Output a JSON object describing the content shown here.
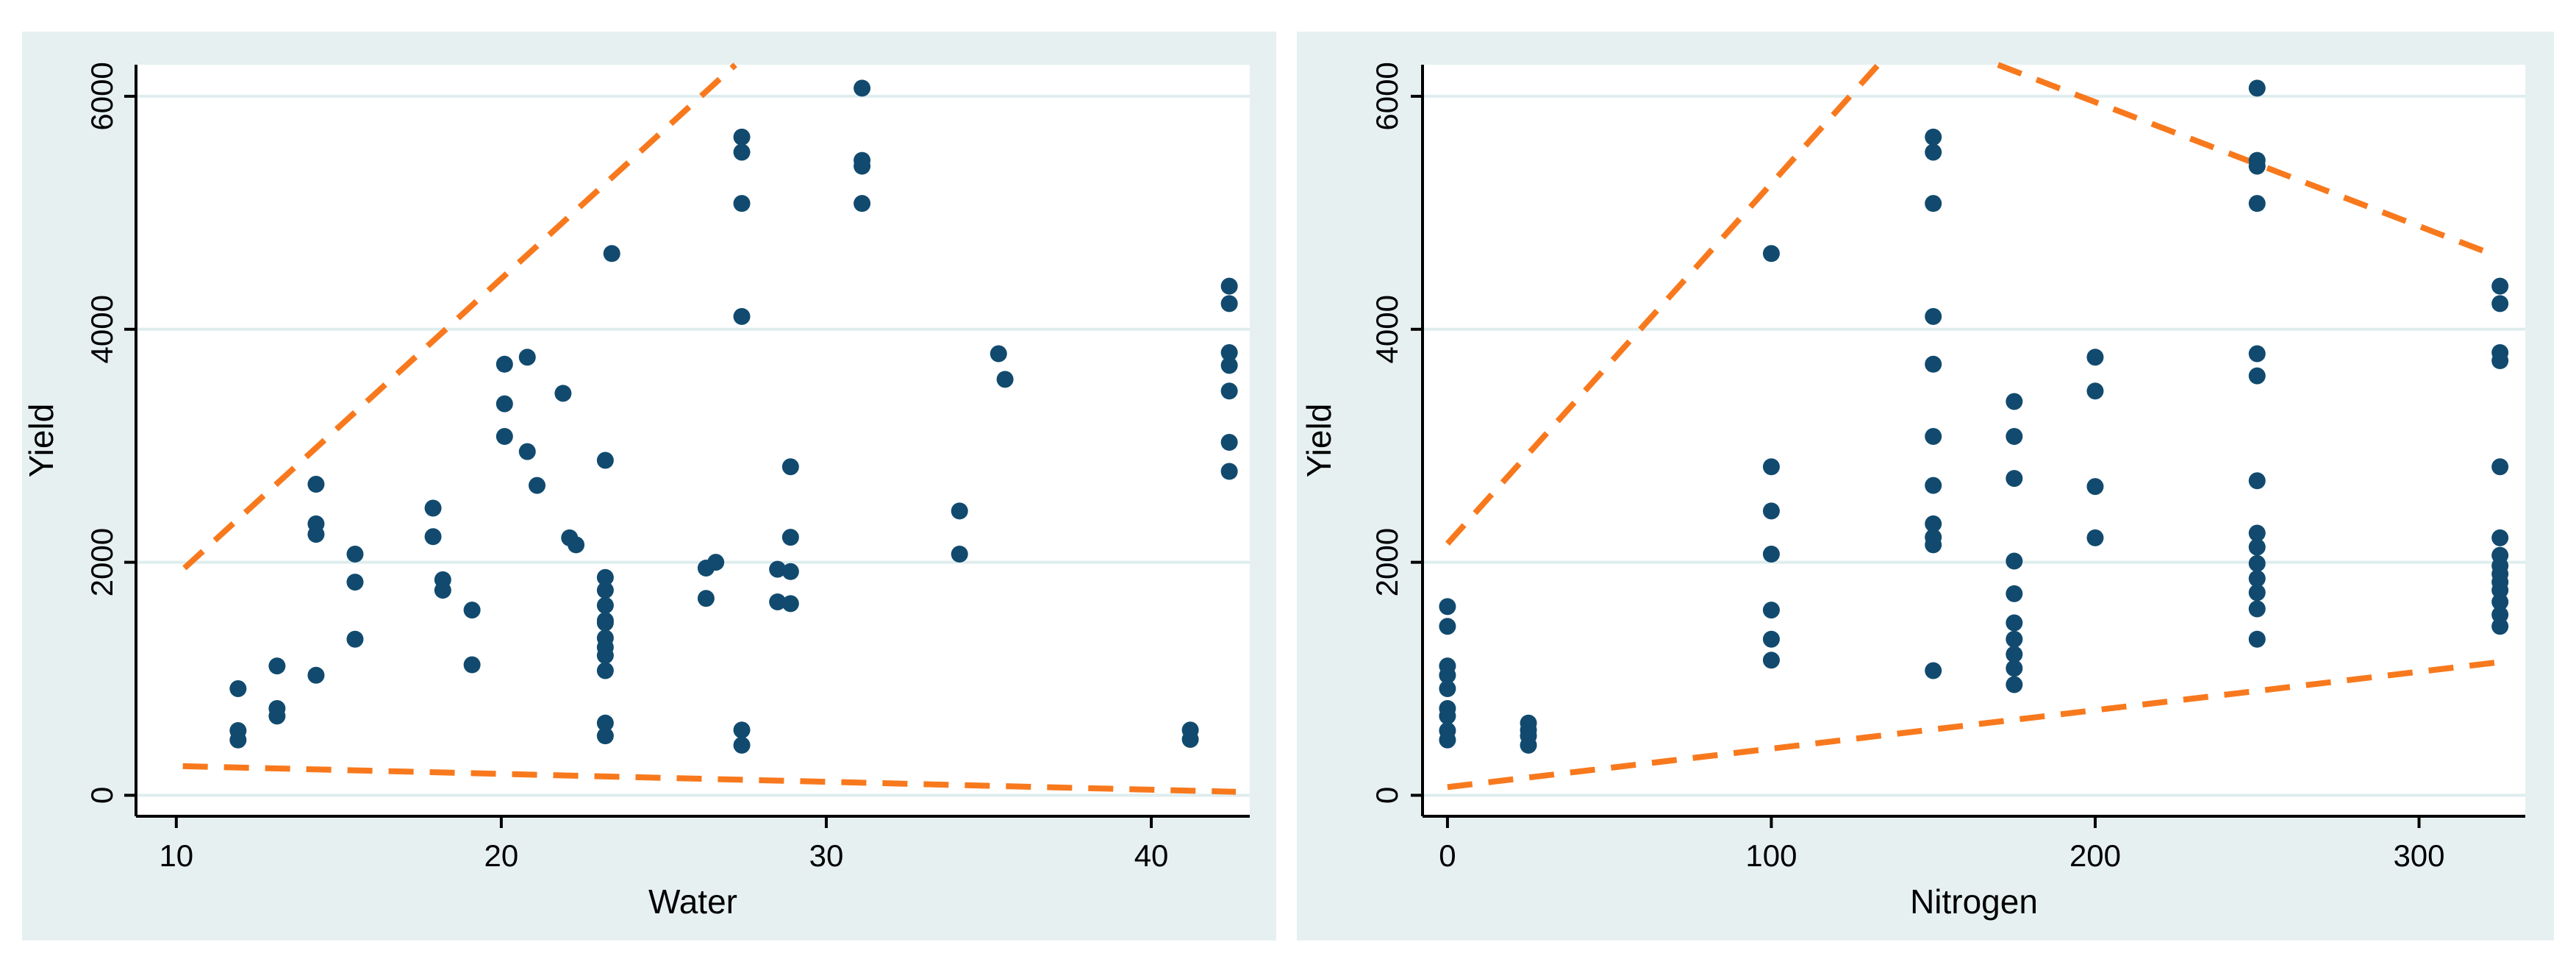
{
  "colors": {
    "outer_background": "#ffffff",
    "figure_background": "#e6f0f1",
    "plot_background": "#ffffff",
    "gridline": "#dfedee",
    "marker": "#114a6e",
    "dashed_line": "#f8791d",
    "axis": "#000000"
  },
  "chart_data": [
    {
      "type": "scatter",
      "title": "",
      "xlabel": "Water",
      "ylabel": "Yield",
      "xlim": [
        8.76,
        43.03
      ],
      "ylim": [
        -180,
        6271
      ],
      "xticks": [
        10,
        20,
        30,
        40
      ],
      "yticks": [
        0,
        2000,
        4000,
        6000
      ],
      "grid": true,
      "legend_position": "none",
      "points": [
        [
          11.9,
          915
        ],
        [
          11.9,
          555
        ],
        [
          11.9,
          475
        ],
        [
          13.1,
          1110
        ],
        [
          13.1,
          745
        ],
        [
          13.1,
          680
        ],
        [
          14.3,
          2670
        ],
        [
          14.3,
          2330
        ],
        [
          14.3,
          2240
        ],
        [
          14.3,
          1030
        ],
        [
          15.5,
          2070
        ],
        [
          15.5,
          1830
        ],
        [
          15.5,
          1340
        ],
        [
          17.9,
          2465
        ],
        [
          17.9,
          2220
        ],
        [
          18.2,
          1850
        ],
        [
          18.2,
          1760
        ],
        [
          19.1,
          1590
        ],
        [
          19.1,
          1120
        ],
        [
          20.1,
          3700
        ],
        [
          20.1,
          3360
        ],
        [
          20.1,
          3080
        ],
        [
          20.8,
          3760
        ],
        [
          20.8,
          2950
        ],
        [
          21.1,
          2660
        ],
        [
          21.9,
          3450
        ],
        [
          22.1,
          2210
        ],
        [
          22.3,
          2150
        ],
        [
          23.2,
          2875
        ],
        [
          23.2,
          1870
        ],
        [
          23.2,
          1760
        ],
        [
          23.2,
          1630
        ],
        [
          23.2,
          1500
        ],
        [
          23.2,
          1480
        ],
        [
          23.2,
          1350
        ],
        [
          23.2,
          1270
        ],
        [
          23.2,
          1200
        ],
        [
          23.2,
          1070
        ],
        [
          23.2,
          620
        ],
        [
          23.2,
          510
        ],
        [
          23.4,
          4650
        ],
        [
          26.3,
          1950
        ],
        [
          26.3,
          1690
        ],
        [
          26.6,
          2000
        ],
        [
          27.4,
          5650
        ],
        [
          27.4,
          5520
        ],
        [
          27.4,
          5080
        ],
        [
          27.4,
          4110
        ],
        [
          27.4,
          560
        ],
        [
          27.4,
          430
        ],
        [
          28.5,
          1940
        ],
        [
          28.5,
          1660
        ],
        [
          28.9,
          2820
        ],
        [
          28.9,
          2215
        ],
        [
          28.9,
          1920
        ],
        [
          28.9,
          1645
        ],
        [
          31.1,
          6070
        ],
        [
          31.1,
          5450
        ],
        [
          31.1,
          5400
        ],
        [
          31.1,
          5080
        ],
        [
          34.1,
          2440
        ],
        [
          34.1,
          2070
        ],
        [
          35.3,
          3790
        ],
        [
          35.5,
          3570
        ],
        [
          41.2,
          560
        ],
        [
          41.2,
          480
        ],
        [
          42.4,
          4370
        ],
        [
          42.4,
          4220
        ],
        [
          42.4,
          3800
        ],
        [
          42.4,
          3690
        ],
        [
          42.4,
          3470
        ],
        [
          42.4,
          3030
        ],
        [
          42.4,
          2780
        ]
      ],
      "frontier_lines": [
        {
          "x1": 10.25,
          "y1": 1950,
          "x2": 27.2,
          "y2": 6270
        },
        {
          "x1": 10.2,
          "y1": 250,
          "x2": 42.6,
          "y2": 30
        }
      ]
    },
    {
      "type": "scatter",
      "title": "",
      "xlabel": "Nitrogen",
      "ylabel": "Yield",
      "xlim": [
        -7.7,
        332.8
      ],
      "ylim": [
        -180,
        6271
      ],
      "xticks": [
        0,
        100,
        200,
        300
      ],
      "yticks": [
        0,
        2000,
        4000,
        6000
      ],
      "grid": true,
      "legend_position": "none",
      "points": [
        [
          0,
          1620
        ],
        [
          0,
          1450
        ],
        [
          0,
          1110
        ],
        [
          0,
          1030
        ],
        [
          0,
          915
        ],
        [
          0,
          745
        ],
        [
          0,
          680
        ],
        [
          0,
          555
        ],
        [
          0,
          475
        ],
        [
          25,
          620
        ],
        [
          25,
          560
        ],
        [
          25,
          510
        ],
        [
          25,
          430
        ],
        [
          100,
          4650
        ],
        [
          100,
          2820
        ],
        [
          100,
          2440
        ],
        [
          100,
          2070
        ],
        [
          100,
          1590
        ],
        [
          100,
          1340
        ],
        [
          100,
          1160
        ],
        [
          150,
          5650
        ],
        [
          150,
          5520
        ],
        [
          150,
          5080
        ],
        [
          150,
          4110
        ],
        [
          150,
          3700
        ],
        [
          150,
          3080
        ],
        [
          150,
          2660
        ],
        [
          150,
          2330
        ],
        [
          150,
          2215
        ],
        [
          150,
          2150
        ],
        [
          150,
          1070
        ],
        [
          175,
          3380
        ],
        [
          175,
          3080
        ],
        [
          175,
          2720
        ],
        [
          175,
          2010
        ],
        [
          175,
          1730
        ],
        [
          175,
          1480
        ],
        [
          175,
          1340
        ],
        [
          175,
          1210
        ],
        [
          175,
          1090
        ],
        [
          175,
          950
        ],
        [
          200,
          3760
        ],
        [
          200,
          3470
        ],
        [
          200,
          2650
        ],
        [
          200,
          2210
        ],
        [
          250,
          6070
        ],
        [
          250,
          5450
        ],
        [
          250,
          5400
        ],
        [
          250,
          5080
        ],
        [
          250,
          3790
        ],
        [
          250,
          3600
        ],
        [
          250,
          2700
        ],
        [
          250,
          2250
        ],
        [
          250,
          2130
        ],
        [
          250,
          1990
        ],
        [
          250,
          1860
        ],
        [
          250,
          1740
        ],
        [
          250,
          1600
        ],
        [
          250,
          1340
        ],
        [
          325,
          4370
        ],
        [
          325,
          4220
        ],
        [
          325,
          3800
        ],
        [
          325,
          3730
        ],
        [
          325,
          2820
        ],
        [
          325,
          2210
        ],
        [
          325,
          2060
        ],
        [
          325,
          1970
        ],
        [
          325,
          1900
        ],
        [
          325,
          1830
        ],
        [
          325,
          1760
        ],
        [
          325,
          1660
        ],
        [
          325,
          1550
        ],
        [
          325,
          1450
        ]
      ],
      "frontier_lines": [
        {
          "x1": 0,
          "y1": 2160,
          "x2": 133,
          "y2": 6270
        },
        {
          "x1": 170,
          "y1": 6270,
          "x2": 323,
          "y2": 4640
        },
        {
          "x1": 0,
          "y1": 70,
          "x2": 327,
          "y2": 1150
        }
      ]
    }
  ]
}
